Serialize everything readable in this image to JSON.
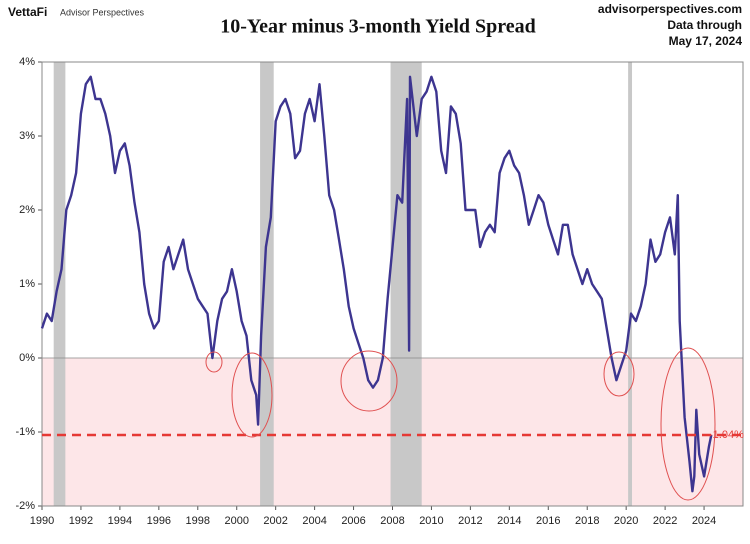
{
  "chart_data": {
    "type": "line",
    "brand": "VettaFi",
    "brand_sub": "Advisor Perspectives",
    "title": "10-Year minus 3-month Yield Spread",
    "source": "advisorperspectives.com",
    "note_1": "Data through",
    "note_2": "May 17, 2024",
    "xlim": [
      1990,
      2026
    ],
    "ylim": [
      -2,
      4
    ],
    "xticks": [
      1990,
      1992,
      1994,
      1996,
      1998,
      2000,
      2002,
      2004,
      2006,
      2008,
      2010,
      2012,
      2014,
      2016,
      2018,
      2020,
      2022,
      2024
    ],
    "yticks": [
      {
        "value": -2,
        "label": "-2%"
      },
      {
        "value": -1,
        "label": "-1%"
      },
      {
        "value": 0,
        "label": "0%"
      },
      {
        "value": 1,
        "label": "1%"
      },
      {
        "value": 2,
        "label": "2%"
      },
      {
        "value": 3,
        "label": "3%"
      },
      {
        "value": 4,
        "label": "4%"
      }
    ],
    "recessions": [
      [
        1990.6,
        1991.2
      ],
      [
        2001.2,
        2001.9
      ],
      [
        2007.9,
        2009.5
      ],
      [
        2020.1,
        2020.3
      ]
    ],
    "reference_line": {
      "value": -1.04,
      "label": "-1.04%",
      "color": "#e53935"
    },
    "negative_fill": "#fde6e8",
    "series": [
      {
        "name": "10-Year minus 3-month",
        "color": "#3d3590",
        "x": [
          1990.0,
          1990.25,
          1990.5,
          1990.75,
          1991.0,
          1991.25,
          1991.5,
          1991.75,
          1992.0,
          1992.25,
          1992.5,
          1992.75,
          1993.0,
          1993.25,
          1993.5,
          1993.75,
          1994.0,
          1994.25,
          1994.5,
          1994.75,
          1995.0,
          1995.25,
          1995.5,
          1995.75,
          1996.0,
          1996.25,
          1996.5,
          1996.75,
          1997.0,
          1997.25,
          1997.5,
          1997.75,
          1998.0,
          1998.25,
          1998.5,
          1998.75,
          1999.0,
          1999.25,
          1999.5,
          1999.75,
          2000.0,
          2000.25,
          2000.5,
          2000.75,
          2001.0,
          2001.1,
          2001.25,
          2001.5,
          2001.75,
          2002.0,
          2002.25,
          2002.5,
          2002.75,
          2003.0,
          2003.25,
          2003.5,
          2003.75,
          2004.0,
          2004.25,
          2004.5,
          2004.75,
          2005.0,
          2005.25,
          2005.5,
          2005.75,
          2006.0,
          2006.25,
          2006.5,
          2006.75,
          2007.0,
          2007.25,
          2007.5,
          2007.75,
          2008.0,
          2008.25,
          2008.5,
          2008.75,
          2008.85,
          2008.9,
          2009.25,
          2009.5,
          2009.75,
          2010.0,
          2010.25,
          2010.5,
          2010.75,
          2011.0,
          2011.25,
          2011.5,
          2011.75,
          2012.0,
          2012.25,
          2012.5,
          2012.75,
          2013.0,
          2013.25,
          2013.5,
          2013.75,
          2014.0,
          2014.25,
          2014.5,
          2014.75,
          2015.0,
          2015.25,
          2015.5,
          2015.75,
          2016.0,
          2016.25,
          2016.5,
          2016.75,
          2017.0,
          2017.25,
          2017.5,
          2017.75,
          2018.0,
          2018.25,
          2018.5,
          2018.75,
          2019.0,
          2019.25,
          2019.5,
          2019.75,
          2020.0,
          2020.25,
          2020.5,
          2020.75,
          2021.0,
          2021.25,
          2021.5,
          2021.75,
          2022.0,
          2022.25,
          2022.5,
          2022.65,
          2022.75,
          2023.0,
          2023.25,
          2023.4,
          2023.5,
          2023.6,
          2023.75,
          2024.0,
          2024.25,
          2024.37
        ],
        "values": [
          0.4,
          0.6,
          0.5,
          0.9,
          1.2,
          2.0,
          2.2,
          2.5,
          3.3,
          3.7,
          3.8,
          3.5,
          3.5,
          3.3,
          3.0,
          2.5,
          2.8,
          2.9,
          2.6,
          2.1,
          1.7,
          1.0,
          0.6,
          0.4,
          0.5,
          1.3,
          1.5,
          1.2,
          1.4,
          1.6,
          1.2,
          1.0,
          0.8,
          0.7,
          0.6,
          0.0,
          0.5,
          0.8,
          0.9,
          1.2,
          0.9,
          0.5,
          0.3,
          -0.3,
          -0.5,
          -0.9,
          0.3,
          1.5,
          1.9,
          3.2,
          3.4,
          3.5,
          3.3,
          2.7,
          2.8,
          3.3,
          3.5,
          3.2,
          3.7,
          3.0,
          2.2,
          2.0,
          1.6,
          1.2,
          0.7,
          0.4,
          0.2,
          0.0,
          -0.3,
          -0.4,
          -0.3,
          0.0,
          0.8,
          1.5,
          2.2,
          2.1,
          3.5,
          0.1,
          3.8,
          3.0,
          3.5,
          3.6,
          3.8,
          3.6,
          2.8,
          2.5,
          3.4,
          3.3,
          2.9,
          2.0,
          2.0,
          2.0,
          1.5,
          1.7,
          1.8,
          1.7,
          2.5,
          2.7,
          2.8,
          2.6,
          2.5,
          2.2,
          1.8,
          2.0,
          2.2,
          2.1,
          1.8,
          1.6,
          1.4,
          1.8,
          1.8,
          1.4,
          1.2,
          1.0,
          1.2,
          1.0,
          0.9,
          0.8,
          0.4,
          0.0,
          -0.3,
          -0.1,
          0.1,
          0.6,
          0.5,
          0.7,
          1.0,
          1.6,
          1.3,
          1.4,
          1.7,
          1.9,
          1.4,
          2.2,
          0.5,
          -0.8,
          -1.4,
          -1.8,
          -1.6,
          -0.7,
          -1.3,
          -1.6,
          -1.2,
          -1.04
        ]
      }
    ]
  }
}
